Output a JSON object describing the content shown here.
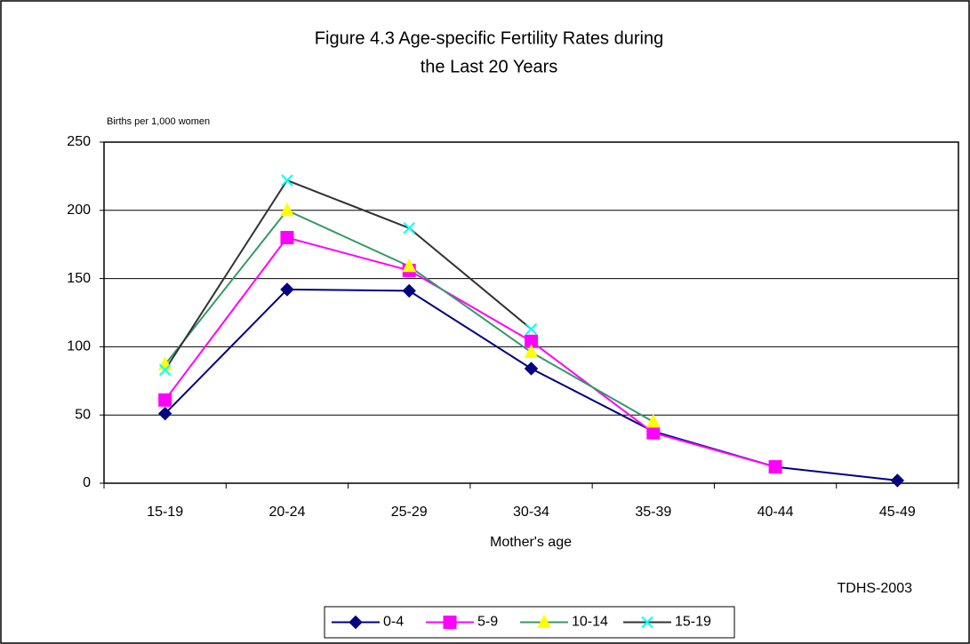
{
  "chart_data": {
    "type": "line",
    "title": [
      "Figure 4.3 Age-specific Fertility Rates during",
      "the Last 20 Years"
    ],
    "y_label": "Births per 1,000 women",
    "x_label": "Mother's age",
    "source": "TDHS-2003",
    "categories": [
      "15-19",
      "20-24",
      "25-29",
      "30-34",
      "35-39",
      "40-44",
      "45-49"
    ],
    "series": [
      {
        "name": "0-4",
        "color": "#000080",
        "marker_color": "#000080",
        "marker": "diamond",
        "values": [
          51,
          142,
          141,
          84,
          38,
          12,
          2
        ]
      },
      {
        "name": "5-9",
        "color": "#ff00ff",
        "marker_color": "#ff00ff",
        "marker": "square",
        "values": [
          61,
          180,
          156,
          104,
          37,
          12,
          null
        ]
      },
      {
        "name": "10-14",
        "color": "#339966",
        "marker_color": "#ffff00",
        "marker": "triangle",
        "values": [
          87,
          200,
          159,
          96,
          45,
          null,
          null
        ]
      },
      {
        "name": "15-19",
        "color": "#333333",
        "marker_color": "#00ffff",
        "marker": "x",
        "values": [
          83,
          222,
          187,
          113,
          null,
          null,
          null
        ]
      }
    ],
    "ylim": [
      0,
      250
    ],
    "yticks": [
      0,
      50,
      100,
      150,
      200,
      250
    ],
    "grid": true,
    "legend": "bottom"
  }
}
